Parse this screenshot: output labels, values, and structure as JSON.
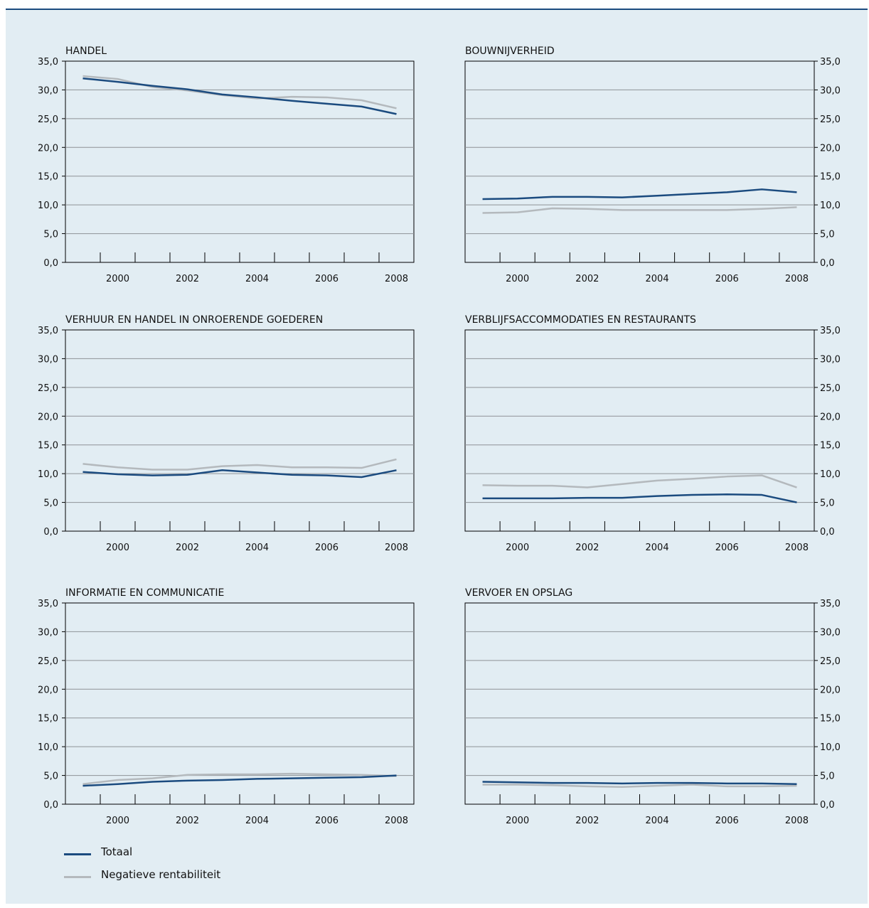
{
  "chart_data": [
    {
      "type": "line",
      "title": "HANDEL",
      "x": [
        1999,
        2000,
        2001,
        2002,
        2003,
        2004,
        2005,
        2006,
        2007,
        2008
      ],
      "xticks": [
        2000,
        2002,
        2004,
        2006,
        2008
      ],
      "ylim": [
        0,
        35
      ],
      "yticks": [
        "0,0",
        "5,0",
        "10,0",
        "15,0",
        "20,0",
        "25,0",
        "30,0",
        "35,0"
      ],
      "yaxis_side": "left",
      "grid": true,
      "series": [
        {
          "name": "Totaal",
          "values": [
            32.0,
            31.4,
            30.7,
            30.1,
            29.2,
            28.7,
            28.1,
            27.6,
            27.1,
            25.8
          ]
        },
        {
          "name": "Negatieve rentabiliteit",
          "values": [
            32.4,
            31.9,
            30.5,
            29.9,
            29.1,
            28.5,
            28.8,
            28.7,
            28.2,
            26.8
          ]
        }
      ]
    },
    {
      "type": "line",
      "title": "BOUWNIJVERHEID",
      "x": [
        1999,
        2000,
        2001,
        2002,
        2003,
        2004,
        2005,
        2006,
        2007,
        2008
      ],
      "xticks": [
        2000,
        2002,
        2004,
        2006,
        2008
      ],
      "ylim": [
        0,
        35
      ],
      "yticks": [
        "0,0",
        "5,0",
        "10,0",
        "15,0",
        "20,0",
        "25,0",
        "30,0",
        "35,0"
      ],
      "yaxis_side": "right",
      "grid": true,
      "series": [
        {
          "name": "Totaal",
          "values": [
            11.0,
            11.1,
            11.4,
            11.4,
            11.3,
            11.6,
            11.9,
            12.2,
            12.7,
            12.2
          ]
        },
        {
          "name": "Negatieve rentabiliteit",
          "values": [
            8.6,
            8.7,
            9.4,
            9.3,
            9.1,
            9.1,
            9.1,
            9.1,
            9.3,
            9.6
          ]
        }
      ]
    },
    {
      "type": "line",
      "title": "VERHUUR EN HANDEL IN ONROERENDE GOEDEREN",
      "x": [
        1999,
        2000,
        2001,
        2002,
        2003,
        2004,
        2005,
        2006,
        2007,
        2008
      ],
      "xticks": [
        2000,
        2002,
        2004,
        2006,
        2008
      ],
      "ylim": [
        0,
        35
      ],
      "yticks": [
        "0,0",
        "5,0",
        "10,0",
        "15,0",
        "20,0",
        "25,0",
        "30,0",
        "35,0"
      ],
      "yaxis_side": "left",
      "grid": true,
      "series": [
        {
          "name": "Totaal",
          "values": [
            10.3,
            9.9,
            9.7,
            9.8,
            10.6,
            10.2,
            9.8,
            9.7,
            9.4,
            10.6
          ]
        },
        {
          "name": "Negatieve rentabiliteit",
          "values": [
            11.7,
            11.1,
            10.7,
            10.7,
            11.3,
            11.5,
            11.1,
            11.1,
            11.0,
            12.5
          ]
        }
      ]
    },
    {
      "type": "line",
      "title": "VERBLIJFSACCOMMODATIES EN RESTAURANTS",
      "x": [
        1999,
        2000,
        2001,
        2002,
        2003,
        2004,
        2005,
        2006,
        2007,
        2008
      ],
      "xticks": [
        2000,
        2002,
        2004,
        2006,
        2008
      ],
      "ylim": [
        0,
        35
      ],
      "yticks": [
        "0,0",
        "5,0",
        "10,0",
        "15,0",
        "20,0",
        "25,0",
        "30,0",
        "35,0"
      ],
      "yaxis_side": "right",
      "grid": true,
      "series": [
        {
          "name": "Totaal",
          "values": [
            5.7,
            5.7,
            5.7,
            5.8,
            5.8,
            6.1,
            6.3,
            6.4,
            6.3,
            5.0
          ]
        },
        {
          "name": "Negatieve rentabiliteit",
          "values": [
            8.0,
            7.9,
            7.9,
            7.6,
            8.2,
            8.8,
            9.1,
            9.5,
            9.7,
            7.6
          ]
        }
      ]
    },
    {
      "type": "line",
      "title": "INFORMATIE EN COMMUNICATIE",
      "x": [
        1999,
        2000,
        2001,
        2002,
        2003,
        2004,
        2005,
        2006,
        2007,
        2008
      ],
      "xticks": [
        2000,
        2002,
        2004,
        2006,
        2008
      ],
      "ylim": [
        0,
        35
      ],
      "yticks": [
        "0,0",
        "5,0",
        "10,0",
        "15,0",
        "20,0",
        "25,0",
        "30,0",
        "35,0"
      ],
      "yaxis_side": "left",
      "grid": true,
      "series": [
        {
          "name": "Totaal",
          "values": [
            3.2,
            3.5,
            3.9,
            4.1,
            4.2,
            4.4,
            4.5,
            4.6,
            4.7,
            5.0
          ]
        },
        {
          "name": "Negatieve rentabiliteit",
          "values": [
            3.5,
            4.2,
            4.5,
            5.1,
            5.2,
            5.2,
            5.3,
            5.2,
            5.1,
            4.9
          ]
        }
      ]
    },
    {
      "type": "line",
      "title": "VERVOER EN OPSLAG",
      "x": [
        1999,
        2000,
        2001,
        2002,
        2003,
        2004,
        2005,
        2006,
        2007,
        2008
      ],
      "xticks": [
        2000,
        2002,
        2004,
        2006,
        2008
      ],
      "ylim": [
        0,
        35
      ],
      "yticks": [
        "0,0",
        "5,0",
        "10,0",
        "15,0",
        "20,0",
        "25,0",
        "30,0",
        "35,0"
      ],
      "yaxis_side": "right",
      "grid": true,
      "series": [
        {
          "name": "Totaal",
          "values": [
            3.9,
            3.8,
            3.7,
            3.7,
            3.6,
            3.7,
            3.7,
            3.6,
            3.6,
            3.5
          ]
        },
        {
          "name": "Negatieve rentabiliteit",
          "values": [
            3.4,
            3.4,
            3.3,
            3.1,
            3.0,
            3.2,
            3.4,
            3.1,
            3.1,
            3.2
          ]
        }
      ]
    }
  ],
  "legend": {
    "items": [
      {
        "label": "Totaal",
        "color": "#1b4b7f"
      },
      {
        "label": "Negatieve rentabiliteit",
        "color": "#b4b9bd"
      }
    ]
  },
  "colors": {
    "totaal": "#1b4b7f",
    "negatief": "#b4b9bd",
    "grid": "#8e9296",
    "background": "#e2edf3"
  }
}
